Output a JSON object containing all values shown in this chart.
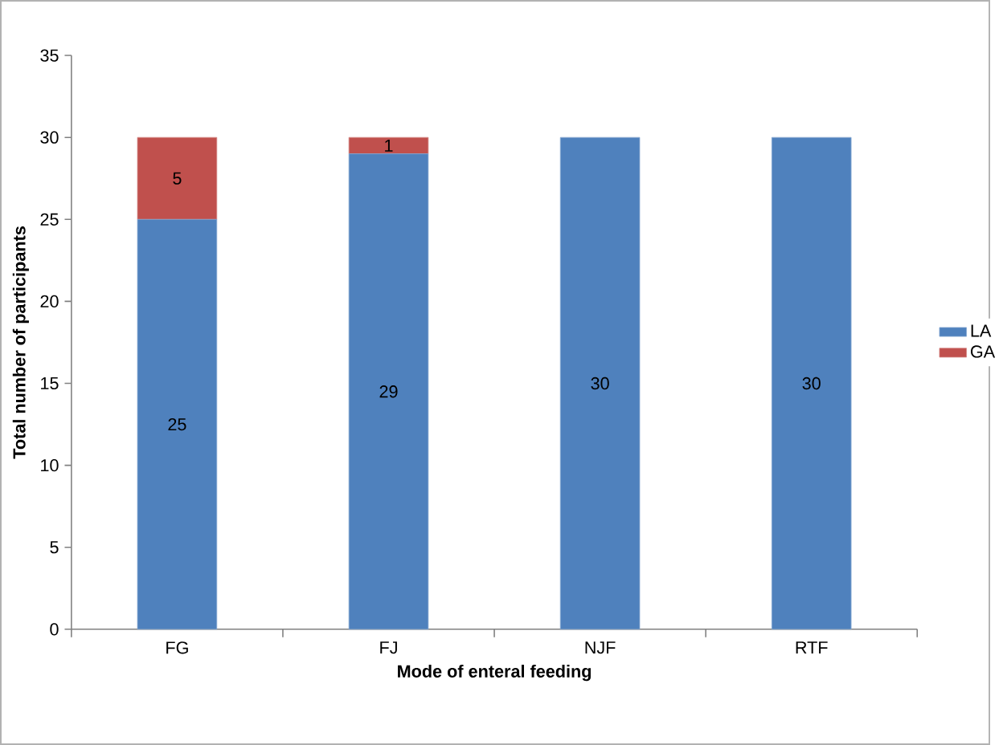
{
  "chart_data": {
    "type": "bar",
    "stacked": true,
    "xlabel": "Mode of enteral feeding",
    "ylabel": "Total number of participants",
    "categories": [
      "FG",
      "FJ",
      "NJF",
      "RTF"
    ],
    "series": [
      {
        "name": "LA",
        "color": "#4f81bd",
        "values": [
          25,
          29,
          30,
          30
        ],
        "value_labels": [
          "25",
          "29",
          "30",
          "30"
        ]
      },
      {
        "name": "GA",
        "color": "#c0504d",
        "values": [
          5,
          1,
          0,
          0
        ],
        "value_labels": [
          "5",
          "1",
          null,
          null
        ]
      }
    ],
    "ylim": [
      0,
      35
    ],
    "yticks": [
      0,
      5,
      10,
      15,
      20,
      25,
      30,
      35
    ],
    "legend": "right"
  }
}
